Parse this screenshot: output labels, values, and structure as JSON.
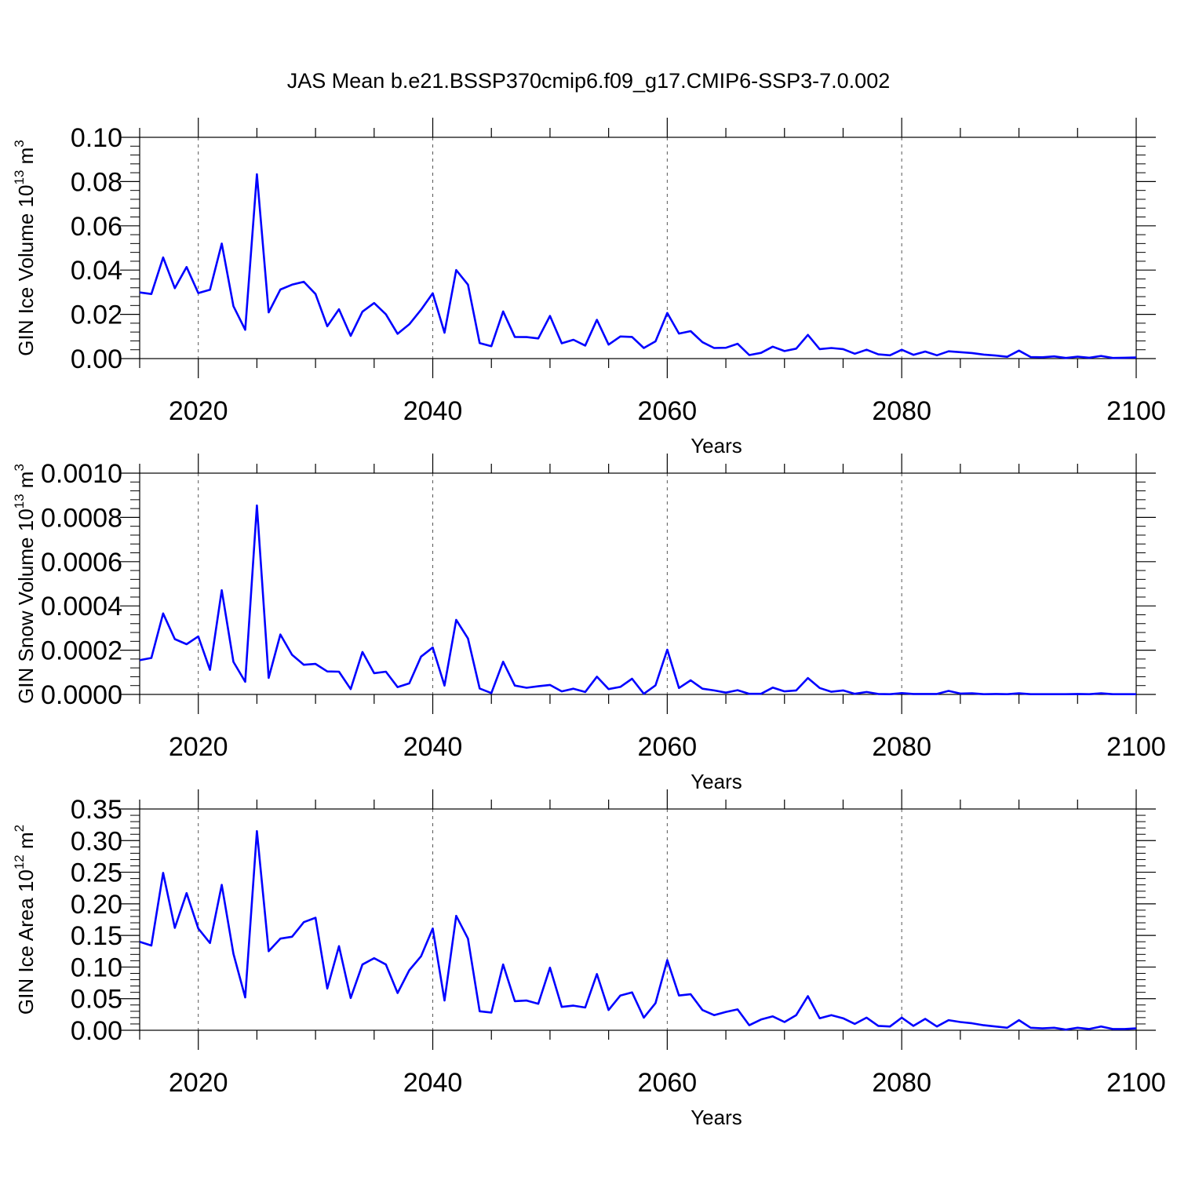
{
  "title": "JAS Mean b.e21.BSSP370cmip6.f09_g17.CMIP6-SSP3-7.0.002",
  "line_color": "#0000ff",
  "chart_data": [
    {
      "type": "line",
      "ylabel": "GIN Ice Volume 10",
      "ylabel_sup": "13",
      "ylabel_unit": " m",
      "ylabel_unit_sup": "3",
      "xlabel": "Years",
      "xlim": [
        2015,
        2100
      ],
      "ylim": [
        0,
        0.1
      ],
      "x_ticks": [
        2020,
        2040,
        2060,
        2080,
        2100
      ],
      "y_ticks": [
        "0.00",
        "0.02",
        "0.04",
        "0.06",
        "0.08",
        "0.10"
      ],
      "series": [
        {
          "x": [
            2015,
            2016,
            2017,
            2018,
            2019,
            2020,
            2021,
            2022,
            2023,
            2024,
            2025,
            2026,
            2027,
            2028,
            2029,
            2030,
            2031,
            2032,
            2033,
            2034,
            2035,
            2036,
            2037,
            2038,
            2039,
            2040,
            2041,
            2042,
            2043,
            2044,
            2045,
            2046,
            2047,
            2048,
            2049,
            2050,
            2051,
            2052,
            2053,
            2054,
            2055,
            2056,
            2057,
            2058,
            2059,
            2060,
            2061,
            2062,
            2063,
            2064,
            2065,
            2066,
            2067,
            2068,
            2069,
            2070,
            2071,
            2072,
            2073,
            2074,
            2075,
            2076,
            2077,
            2078,
            2079,
            2080,
            2081,
            2082,
            2083,
            2084,
            2085,
            2086,
            2087,
            2088,
            2089,
            2090,
            2091,
            2092,
            2093,
            2094,
            2095,
            2096,
            2097,
            2098,
            2099,
            2100
          ],
          "y": [
            0.0299,
            0.0292,
            0.0457,
            0.0318,
            0.0414,
            0.0296,
            0.0311,
            0.052,
            0.0237,
            0.013,
            0.0833,
            0.0209,
            0.0312,
            0.0334,
            0.0347,
            0.0292,
            0.0146,
            0.0223,
            0.0103,
            0.0212,
            0.0251,
            0.02,
            0.0112,
            0.0155,
            0.0221,
            0.0295,
            0.0117,
            0.04,
            0.0334,
            0.007,
            0.0056,
            0.0213,
            0.0098,
            0.0097,
            0.0091,
            0.0193,
            0.0069,
            0.0085,
            0.0059,
            0.0175,
            0.0063,
            0.01,
            0.0098,
            0.0048,
            0.0078,
            0.0206,
            0.0113,
            0.0124,
            0.0074,
            0.0048,
            0.0049,
            0.0067,
            0.0016,
            0.0026,
            0.0054,
            0.0034,
            0.0045,
            0.0107,
            0.0043,
            0.0048,
            0.0043,
            0.0022,
            0.004,
            0.0019,
            0.0015,
            0.004,
            0.0017,
            0.0032,
            0.0015,
            0.0033,
            0.0029,
            0.0025,
            0.0018,
            0.0014,
            0.0008,
            0.0036,
            0.0007,
            0.0006,
            0.001,
            0.0003,
            0.0009,
            0.0004,
            0.0012,
            0.0003,
            0.0004,
            0.0005
          ]
        }
      ]
    },
    {
      "type": "line",
      "ylabel": "GIN Snow Volume 10",
      "ylabel_sup": "13",
      "ylabel_unit": " m",
      "ylabel_unit_sup": "3",
      "xlabel": "Years",
      "xlim": [
        2015,
        2100
      ],
      "ylim": [
        0,
        0.001
      ],
      "x_ticks": [
        2020,
        2040,
        2060,
        2080,
        2100
      ],
      "y_ticks": [
        "0.0000",
        "0.0002",
        "0.0004",
        "0.0006",
        "0.0008",
        "0.0010"
      ],
      "series": [
        {
          "x": [
            2015,
            2016,
            2017,
            2018,
            2019,
            2020,
            2021,
            2022,
            2023,
            2024,
            2025,
            2026,
            2027,
            2028,
            2029,
            2030,
            2031,
            2032,
            2033,
            2034,
            2035,
            2036,
            2037,
            2038,
            2039,
            2040,
            2041,
            2042,
            2043,
            2044,
            2045,
            2046,
            2047,
            2048,
            2049,
            2050,
            2051,
            2052,
            2053,
            2054,
            2055,
            2056,
            2057,
            2058,
            2059,
            2060,
            2061,
            2062,
            2063,
            2064,
            2065,
            2066,
            2067,
            2068,
            2069,
            2070,
            2071,
            2072,
            2073,
            2074,
            2075,
            2076,
            2077,
            2078,
            2079,
            2080,
            2081,
            2082,
            2083,
            2084,
            2085,
            2086,
            2087,
            2088,
            2089,
            2090,
            2091,
            2092,
            2093,
            2094,
            2095,
            2096,
            2097,
            2098,
            2099,
            2100
          ],
          "y": [
            0.000155,
            0.000165,
            0.000366,
            0.00025,
            0.000227,
            0.000262,
            0.000111,
            0.000471,
            0.000147,
            5.7e-05,
            0.000854,
            7.5e-05,
            0.000271,
            0.000179,
            0.000134,
            0.000138,
            0.000104,
            0.000103,
            2.4e-05,
            0.000192,
            9.6e-05,
            0.000103,
            3.3e-05,
            5e-05,
            0.000171,
            0.000212,
            4e-05,
            0.000337,
            0.000253,
            2.7e-05,
            6e-06,
            0.000148,
            4e-05,
            3e-05,
            3.7e-05,
            4.3e-05,
            1.4e-05,
            2.6e-05,
            1.1e-05,
            8e-05,
            2.4e-05,
            3.4e-05,
            7.1e-05,
            3e-06,
            4.1e-05,
            0.000202,
            2.9e-05,
            6.4e-05,
            2.6e-05,
            1.8e-05,
            8e-06,
            1.9e-05,
            3e-06,
            3e-06,
            3.1e-05,
            1.4e-05,
            1.8e-05,
            7.4e-05,
            2.9e-05,
            1.2e-05,
            1.8e-05,
            3e-06,
            1.1e-05,
            2e-06,
            1e-06,
            6e-06,
            2e-06,
            2e-06,
            2e-06,
            1.6e-05,
            4e-06,
            5e-06,
            1e-06,
            2e-06,
            1e-06,
            5e-06,
            1e-06,
            1e-06,
            1e-06,
            1e-06,
            2e-06,
            1e-06,
            5e-06,
            1e-06,
            1e-06,
            1e-06
          ]
        }
      ]
    },
    {
      "type": "line",
      "ylabel": "GIN Ice Area 10",
      "ylabel_sup": "12",
      "ylabel_unit": " m",
      "ylabel_unit_sup": "2",
      "xlabel": "Years",
      "xlim": [
        2015,
        2100
      ],
      "ylim": [
        0,
        0.35
      ],
      "x_ticks": [
        2020,
        2040,
        2060,
        2080,
        2100
      ],
      "y_ticks": [
        "0.00",
        "0.05",
        "0.10",
        "0.15",
        "0.20",
        "0.25",
        "0.30",
        "0.35"
      ],
      "series": [
        {
          "x": [
            2015,
            2016,
            2017,
            2018,
            2019,
            2020,
            2021,
            2022,
            2023,
            2024,
            2025,
            2026,
            2027,
            2028,
            2029,
            2030,
            2031,
            2032,
            2033,
            2034,
            2035,
            2036,
            2037,
            2038,
            2039,
            2040,
            2041,
            2042,
            2043,
            2044,
            2045,
            2046,
            2047,
            2048,
            2049,
            2050,
            2051,
            2052,
            2053,
            2054,
            2055,
            2056,
            2057,
            2058,
            2059,
            2060,
            2061,
            2062,
            2063,
            2064,
            2065,
            2066,
            2067,
            2068,
            2069,
            2070,
            2071,
            2072,
            2073,
            2074,
            2075,
            2076,
            2077,
            2078,
            2079,
            2080,
            2081,
            2082,
            2083,
            2084,
            2085,
            2086,
            2087,
            2088,
            2089,
            2090,
            2091,
            2092,
            2093,
            2094,
            2095,
            2096,
            2097,
            2098,
            2099,
            2100
          ],
          "y": [
            0.14,
            0.134,
            0.249,
            0.162,
            0.217,
            0.161,
            0.138,
            0.23,
            0.121,
            0.052,
            0.315,
            0.125,
            0.145,
            0.148,
            0.171,
            0.178,
            0.066,
            0.133,
            0.051,
            0.104,
            0.114,
            0.104,
            0.059,
            0.095,
            0.117,
            0.161,
            0.047,
            0.181,
            0.145,
            0.03,
            0.028,
            0.104,
            0.046,
            0.047,
            0.042,
            0.099,
            0.037,
            0.039,
            0.036,
            0.089,
            0.032,
            0.055,
            0.06,
            0.02,
            0.043,
            0.111,
            0.055,
            0.057,
            0.032,
            0.024,
            0.029,
            0.033,
            0.008,
            0.017,
            0.022,
            0.013,
            0.024,
            0.054,
            0.019,
            0.024,
            0.019,
            0.01,
            0.02,
            0.007,
            0.006,
            0.02,
            0.007,
            0.018,
            0.006,
            0.016,
            0.013,
            0.011,
            0.008,
            0.006,
            0.004,
            0.016,
            0.004,
            0.003,
            0.004,
            0.001,
            0.004,
            0.002,
            0.006,
            0.002,
            0.002,
            0.003
          ]
        }
      ]
    }
  ]
}
